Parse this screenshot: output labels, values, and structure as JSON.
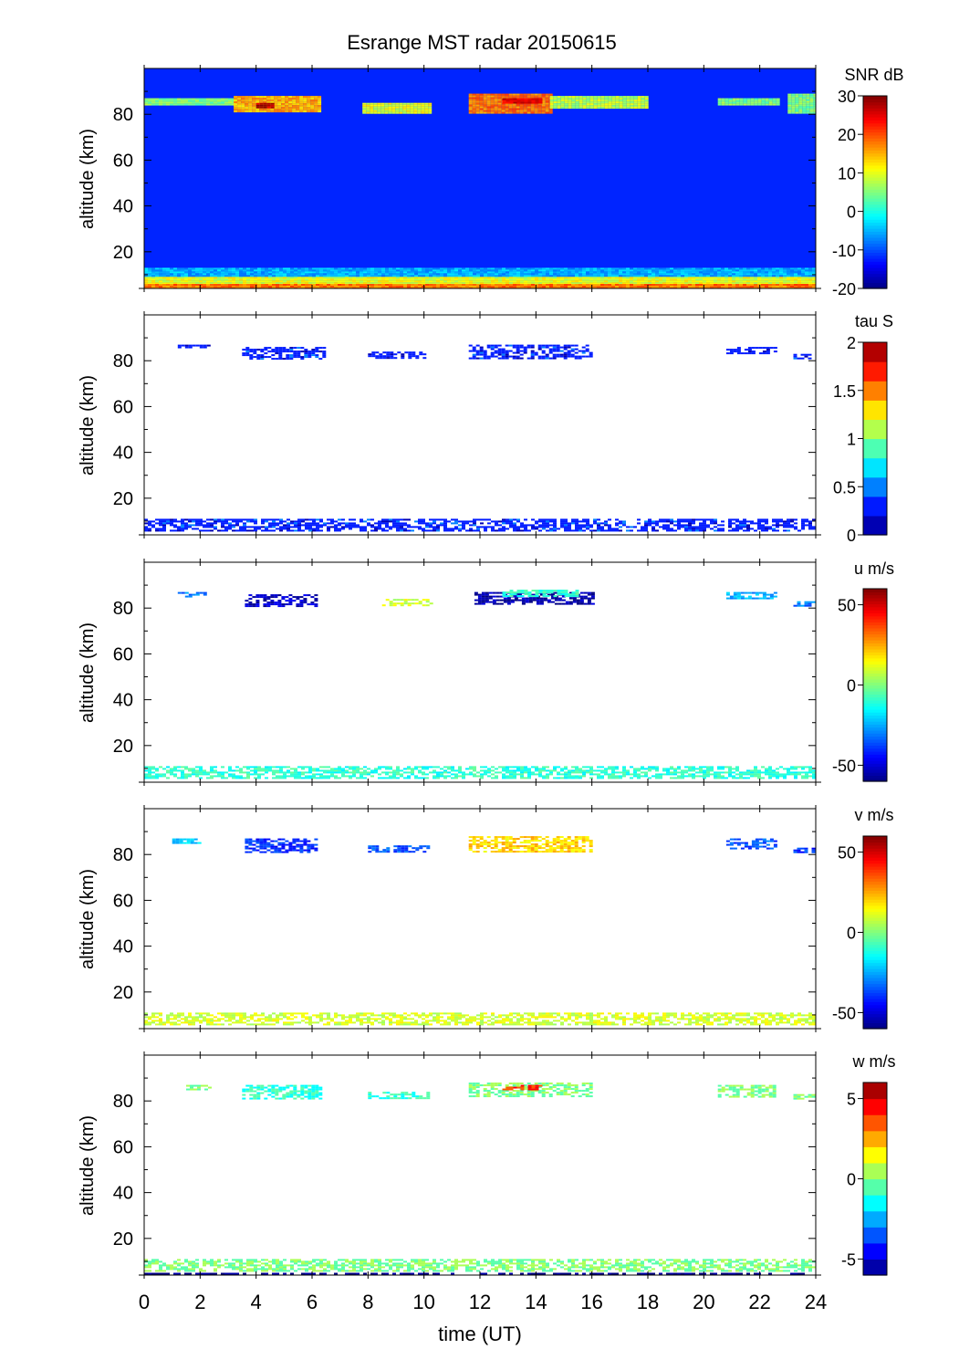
{
  "chart_data": {
    "title": "Esrange MST radar 20150615",
    "type": "heatmap",
    "xlabel": "time (UT)",
    "x_ticks": [
      0,
      2,
      4,
      6,
      8,
      10,
      12,
      14,
      16,
      18,
      20,
      22,
      24
    ],
    "xlim": [
      0,
      24
    ],
    "panels": [
      {
        "name": "snr",
        "ylabel": "altitude (km)",
        "ylim": [
          4,
          100
        ],
        "y_ticks": [
          20,
          40,
          60,
          80
        ],
        "colorbar_label": "SNR dB",
        "colorbar_ticks": [
          "30",
          "20",
          "10",
          "0",
          "-10",
          "-20"
        ],
        "clim": [
          -20,
          30
        ],
        "colormap": "jet-continuous",
        "background": "noise-filled",
        "features": [
          {
            "t": [
              0.0,
              3.2
            ],
            "alt": [
              84,
              87
            ],
            "level": 5
          },
          {
            "t": [
              3.2,
              6.3
            ],
            "alt": [
              81,
              88
            ],
            "level": 15
          },
          {
            "t": [
              4.0,
              4.6
            ],
            "alt": [
              83,
              85
            ],
            "level": 27
          },
          {
            "t": [
              7.8,
              10.2
            ],
            "alt": [
              81,
              85
            ],
            "level": 10
          },
          {
            "t": [
              11.6,
              14.5
            ],
            "alt": [
              81,
              89
            ],
            "level": 18
          },
          {
            "t": [
              12.8,
              14.2
            ],
            "alt": [
              85,
              87
            ],
            "level": 26
          },
          {
            "t": [
              14.5,
              18.0
            ],
            "alt": [
              83,
              88
            ],
            "level": 8
          },
          {
            "t": [
              20.5,
              22.7
            ],
            "alt": [
              84,
              87
            ],
            "level": 5
          },
          {
            "t": [
              23.0,
              24.0
            ],
            "alt": [
              81,
              89
            ],
            "level": 5
          },
          {
            "t": [
              0.0,
              24.0
            ],
            "alt": [
              9,
              13
            ],
            "level": -5
          },
          {
            "t": [
              0.0,
              24.0
            ],
            "alt": [
              6,
              9
            ],
            "level": 10
          },
          {
            "t": [
              0.0,
              24.0
            ],
            "alt": [
              4,
              6
            ],
            "level": 18
          }
        ]
      },
      {
        "name": "tau",
        "ylabel": "altitude (km)",
        "ylim": [
          4,
          100
        ],
        "y_ticks": [
          20,
          40,
          60,
          80
        ],
        "colorbar_label": "tau S",
        "colorbar_ticks": [
          "2",
          "1.5",
          "1",
          "0.5",
          "0"
        ],
        "clim": [
          0,
          2
        ],
        "colormap": "jet-discrete-10",
        "background": "white",
        "features": [
          {
            "t": [
              1.2,
              2.3
            ],
            "alt": [
              86,
              87
            ],
            "level": 0.3
          },
          {
            "t": [
              3.5,
              6.5
            ],
            "alt": [
              81,
              86
            ],
            "level": 0.3
          },
          {
            "t": [
              8.0,
              10.2
            ],
            "alt": [
              81,
              84
            ],
            "level": 0.3
          },
          {
            "t": [
              11.6,
              16.0
            ],
            "alt": [
              81,
              87
            ],
            "level": 0.3
          },
          {
            "t": [
              20.8,
              22.5
            ],
            "alt": [
              83,
              86
            ],
            "level": 0.3
          },
          {
            "t": [
              23.2,
              24.0
            ],
            "alt": [
              81,
              83
            ],
            "level": 0.3
          },
          {
            "t": [
              0.0,
              24.0
            ],
            "alt": [
              6,
              11
            ],
            "level": 0.3
          }
        ]
      },
      {
        "name": "u",
        "ylabel": "altitude (km)",
        "ylim": [
          4,
          100
        ],
        "y_ticks": [
          20,
          40,
          60,
          80
        ],
        "colorbar_label": "u m/s",
        "colorbar_ticks": [
          "50",
          "0",
          "-50"
        ],
        "clim": [
          -60,
          60
        ],
        "colormap": "jet-continuous",
        "background": "white",
        "features": [
          {
            "t": [
              1.2,
              2.2
            ],
            "alt": [
              85,
              87
            ],
            "level": -30
          },
          {
            "t": [
              3.6,
              6.2
            ],
            "alt": [
              81,
              86
            ],
            "level": -52
          },
          {
            "t": [
              8.5,
              10.2
            ],
            "alt": [
              81,
              84
            ],
            "level": 10
          },
          {
            "t": [
              11.8,
              16.0
            ],
            "alt": [
              82,
              87
            ],
            "level": -55
          },
          {
            "t": [
              12.8,
              15.5
            ],
            "alt": [
              85,
              88
            ],
            "level": -10
          },
          {
            "t": [
              20.8,
              22.5
            ],
            "alt": [
              84,
              87
            ],
            "level": -25
          },
          {
            "t": [
              23.2,
              24.0
            ],
            "alt": [
              81,
              83
            ],
            "level": -30
          },
          {
            "t": [
              0.0,
              24.0
            ],
            "alt": [
              6,
              11
            ],
            "level": -10
          }
        ]
      },
      {
        "name": "v",
        "ylabel": "altitude (km)",
        "ylim": [
          4,
          100
        ],
        "y_ticks": [
          20,
          40,
          60,
          80
        ],
        "colorbar_label": "v m/s",
        "colorbar_ticks": [
          "50",
          "0",
          "-50"
        ],
        "clim": [
          -60,
          60
        ],
        "colormap": "jet-continuous",
        "background": "white",
        "features": [
          {
            "t": [
              1.0,
              2.2
            ],
            "alt": [
              85,
              87
            ],
            "level": -20
          },
          {
            "t": [
              3.6,
              6.2
            ],
            "alt": [
              81,
              87
            ],
            "level": -40
          },
          {
            "t": [
              8.0,
              10.2
            ],
            "alt": [
              81,
              84
            ],
            "level": -35
          },
          {
            "t": [
              11.6,
              16.0
            ],
            "alt": [
              81,
              88
            ],
            "level": 20
          },
          {
            "t": [
              20.8,
              22.5
            ],
            "alt": [
              83,
              87
            ],
            "level": -35
          },
          {
            "t": [
              23.2,
              24.0
            ],
            "alt": [
              81,
              83
            ],
            "level": -40
          },
          {
            "t": [
              0.0,
              24.0
            ],
            "alt": [
              6,
              11
            ],
            "level": 10
          }
        ]
      },
      {
        "name": "w",
        "ylabel": "altitude (km)",
        "ylim": [
          4,
          100
        ],
        "y_ticks": [
          20,
          40,
          60,
          80
        ],
        "colorbar_label": "w m/s",
        "colorbar_ticks": [
          "5",
          "0",
          "-5"
        ],
        "clim": [
          -6,
          6
        ],
        "colormap": "jet-discrete-12",
        "background": "white",
        "features": [
          {
            "t": [
              1.5,
              2.3
            ],
            "alt": [
              85,
              87
            ],
            "level": 0
          },
          {
            "t": [
              3.5,
              6.3
            ],
            "alt": [
              81,
              87
            ],
            "level": -1
          },
          {
            "t": [
              8.0,
              10.2
            ],
            "alt": [
              81,
              84
            ],
            "level": -1
          },
          {
            "t": [
              11.6,
              16.0
            ],
            "alt": [
              82,
              88
            ],
            "level": 0
          },
          {
            "t": [
              12.8,
              14.2
            ],
            "alt": [
              85,
              87
            ],
            "level": 4
          },
          {
            "t": [
              20.5,
              22.5
            ],
            "alt": [
              82,
              87
            ],
            "level": 0
          },
          {
            "t": [
              23.2,
              24.0
            ],
            "alt": [
              81,
              83
            ],
            "level": 0
          },
          {
            "t": [
              0.0,
              24.0
            ],
            "alt": [
              6,
              11
            ],
            "level": 0
          },
          {
            "t": [
              0.0,
              24.0
            ],
            "alt": [
              4,
              5
            ],
            "level": -6
          }
        ]
      }
    ]
  }
}
